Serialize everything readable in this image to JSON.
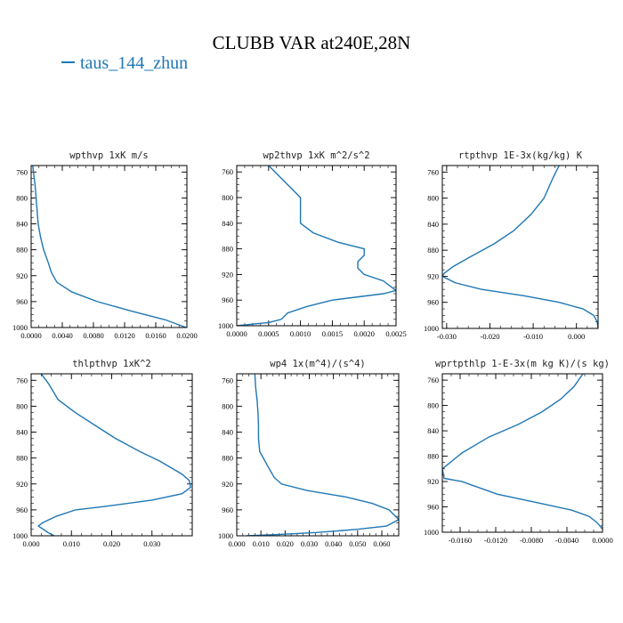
{
  "figure": {
    "title": "CLUBB VAR at240E,28N",
    "legend_label": "taus_144_zhun",
    "line_color": "#1f77b4",
    "axis_color": "#000000"
  },
  "chart_data": [
    {
      "type": "line",
      "title": "wpthvp  1xK m/s",
      "xlim": [
        0,
        0.02
      ],
      "ylim": [
        1000,
        750
      ],
      "xticks": [
        0,
        0.004,
        0.008,
        0.012,
        0.016,
        0.02
      ],
      "xticklabels": [
        "0.0000",
        "0.0040",
        "0.0080",
        "0.0120",
        "0.0160",
        "0.0200"
      ],
      "yticks": [
        760,
        800,
        840,
        880,
        920,
        960,
        1000
      ],
      "series": [
        {
          "x": [
            0.0002,
            0.0005,
            0.0007,
            0.0009,
            0.0012,
            0.0016,
            0.0022,
            0.0026,
            0.0033,
            0.0052,
            0.0085,
            0.013,
            0.0172,
            0.0199
          ],
          "y": [
            750,
            780,
            810,
            840,
            860,
            880,
            900,
            915,
            930,
            945,
            960,
            975,
            988,
            1000
          ]
        }
      ]
    },
    {
      "type": "line",
      "title": "wp2thvp  1xK m^2/s^2",
      "xlim": [
        0,
        0.0025
      ],
      "ylim": [
        1000,
        750
      ],
      "xticks": [
        0,
        0.0005,
        0.001,
        0.0015,
        0.002,
        0.0025
      ],
      "xticklabels": [
        "0.0000",
        "0.0005",
        "0.0010",
        "0.0015",
        "0.0020",
        "0.0025"
      ],
      "yticks": [
        760,
        800,
        840,
        880,
        920,
        960,
        1000
      ],
      "series": [
        {
          "x": [
            0.0005,
            0.0007,
            0.0009,
            0.001,
            0.001,
            0.001,
            0.0012,
            0.0016,
            0.002,
            0.002,
            0.0019,
            0.0019,
            0.002,
            0.0023,
            0.0025,
            0.0023,
            0.0015,
            0.0011,
            0.0008,
            0.0007,
            0.0005,
            0
          ],
          "y": [
            750,
            770,
            790,
            800,
            820,
            840,
            855,
            870,
            880,
            890,
            900,
            910,
            920,
            930,
            945,
            950,
            960,
            970,
            980,
            990,
            995,
            1000
          ]
        }
      ]
    },
    {
      "type": "line",
      "title": "rtpthvp  1E-3x(kg/kg) K",
      "xlim": [
        -0.031,
        0.005
      ],
      "ylim": [
        1000,
        750
      ],
      "xticks": [
        -0.03,
        -0.02,
        -0.01,
        0
      ],
      "xticklabels": [
        "-0.030",
        "-0.020",
        "-0.010",
        "0.000"
      ],
      "yticks": [
        760,
        800,
        840,
        880,
        920,
        960,
        1000
      ],
      "series": [
        {
          "x": [
            -0.004,
            -0.0055,
            -0.0075,
            -0.0105,
            -0.0145,
            -0.019,
            -0.0245,
            -0.0285,
            -0.0305,
            -0.031,
            -0.028,
            -0.022,
            -0.012,
            -0.004,
            0.0015,
            0.004,
            0.0048,
            0.005
          ],
          "y": [
            750,
            770,
            800,
            825,
            850,
            870,
            890,
            905,
            915,
            920,
            930,
            940,
            950,
            960,
            970,
            980,
            990,
            1000
          ]
        }
      ]
    },
    {
      "type": "line",
      "title": "thlpthvp  1xK^2",
      "xlim": [
        0,
        0.04
      ],
      "ylim": [
        1000,
        750
      ],
      "xticks": [
        0,
        0.01,
        0.02,
        0.03
      ],
      "xticklabels": [
        "0.000",
        "0.010",
        "0.020",
        "0.030"
      ],
      "yticks": [
        760,
        800,
        840,
        880,
        920,
        960,
        1000
      ],
      "series": [
        {
          "x": [
            0.0025,
            0.0043,
            0.0067,
            0.011,
            0.016,
            0.021,
            0.027,
            0.032,
            0.0375,
            0.0393,
            0.0396,
            0.0375,
            0.03,
            0.018,
            0.011,
            0.0062,
            0.0028,
            0.0018,
            0.0042,
            0.0057
          ],
          "y": [
            750,
            765,
            790,
            810,
            830,
            850,
            870,
            885,
            905,
            915,
            925,
            935,
            945,
            955,
            960,
            970,
            980,
            985,
            995,
            1000
          ]
        }
      ]
    },
    {
      "type": "line",
      "title": "wp4  1x(m^4)/(s^4)",
      "xlim": [
        0,
        0.067
      ],
      "ylim": [
        1000,
        750
      ],
      "xticks": [
        0,
        0.01,
        0.02,
        0.03,
        0.04,
        0.05,
        0.06
      ],
      "xticklabels": [
        "0.000",
        "0.010",
        "0.020",
        "0.030",
        "0.040",
        "0.050",
        "0.060"
      ],
      "yticks": [
        760,
        800,
        840,
        880,
        920,
        960,
        1000
      ],
      "series": [
        {
          "x": [
            0.0075,
            0.0078,
            0.0084,
            0.0088,
            0.009,
            0.009,
            0.0095,
            0.011,
            0.0132,
            0.0155,
            0.0185,
            0.029,
            0.045,
            0.056,
            0.063,
            0.067,
            0.062,
            0.05,
            0.033,
            0.017,
            0.004
          ],
          "y": [
            750,
            770,
            790,
            810,
            830,
            850,
            870,
            880,
            895,
            910,
            920,
            930,
            940,
            950,
            960,
            975,
            985,
            990,
            995,
            998,
            1000
          ]
        }
      ]
    },
    {
      "type": "line",
      "title": "wprtpthlp  1-E-3x(m kg K)/(s kg)",
      "xlim": [
        -0.018,
        0
      ],
      "ylim": [
        1000,
        750
      ],
      "xticks": [
        -0.016,
        -0.012,
        -0.008,
        -0.004,
        0
      ],
      "xticklabels": [
        "-0.0160",
        "-0.0120",
        "-0.0080",
        "-0.0040",
        "0.0000"
      ],
      "yticks": [
        760,
        800,
        840,
        880,
        920,
        960,
        1000
      ],
      "series": [
        {
          "x": [
            -0.0022,
            -0.0032,
            -0.0047,
            -0.0068,
            -0.0095,
            -0.0128,
            -0.0158,
            -0.018,
            -0.0178,
            -0.0158,
            -0.0118,
            -0.0068,
            -0.0035,
            -0.0015,
            -0.0006,
            0
          ],
          "y": [
            750,
            770,
            790,
            810,
            830,
            850,
            875,
            900,
            915,
            920,
            940,
            955,
            965,
            975,
            985,
            995
          ]
        }
      ]
    }
  ]
}
